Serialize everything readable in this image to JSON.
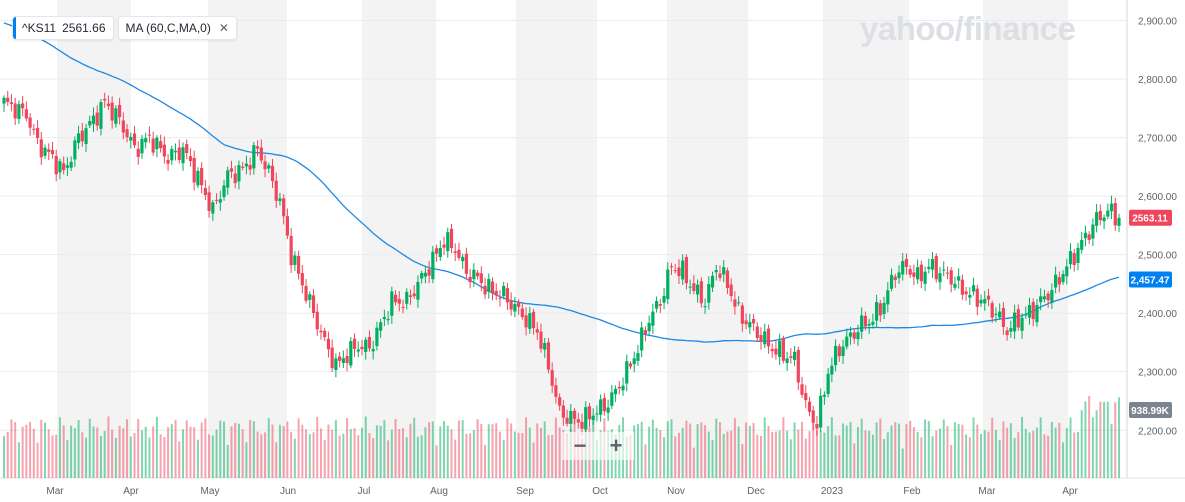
{
  "legend": {
    "symbol": "^KS11",
    "last_value": "2561.66",
    "indicator": "MA (60,C,MA,0)",
    "close_glyph": "✕"
  },
  "watermark": "yahoo/finance",
  "zoom": {
    "minus": "−",
    "plus": "+"
  },
  "colors": {
    "up": "#00b061",
    "down": "#f0465c",
    "ma_line": "#1e88e5",
    "price_tag": "#f0465c",
    "ma_tag": "#0081f2",
    "volume_tag": "#7b8590"
  },
  "chart_data": {
    "type": "candlestick",
    "title": "",
    "price_axis": {
      "ticks": [
        "2,900.00",
        "2,800.00",
        "2,700.00",
        "2,600.00",
        "2,500.00",
        "2,400.00",
        "2,300.00",
        "2,200.00"
      ],
      "range": [
        2180,
        2935
      ]
    },
    "x_labels": [
      "Mar",
      "Apr",
      "May",
      "Jun",
      "Jul",
      "Aug",
      "Sep",
      "Oct",
      "Nov",
      "Dec",
      "2023",
      "Feb",
      "Mar",
      "Apr"
    ],
    "last_price_tag": "2563.11",
    "ma_tag": "2,457.47",
    "volume_tag": "938.99K",
    "close_anchors": [
      [
        0,
        2760
      ],
      [
        6,
        2740
      ],
      [
        9,
        2690
      ],
      [
        13,
        2665
      ],
      [
        16,
        2640
      ],
      [
        20,
        2700
      ],
      [
        24,
        2730
      ],
      [
        27,
        2760
      ],
      [
        31,
        2730
      ],
      [
        35,
        2680
      ],
      [
        39,
        2700
      ],
      [
        44,
        2665
      ],
      [
        48,
        2680
      ],
      [
        52,
        2630
      ],
      [
        56,
        2575
      ],
      [
        60,
        2635
      ],
      [
        64,
        2645
      ],
      [
        68,
        2680
      ],
      [
        71,
        2640
      ],
      [
        74,
        2590
      ],
      [
        77,
        2500
      ],
      [
        80,
        2450
      ],
      [
        83,
        2400
      ],
      [
        86,
        2350
      ],
      [
        89,
        2310
      ],
      [
        92,
        2330
      ],
      [
        95,
        2345
      ],
      [
        98,
        2340
      ],
      [
        101,
        2380
      ],
      [
        104,
        2420
      ],
      [
        108,
        2420
      ],
      [
        112,
        2460
      ],
      [
        115,
        2490
      ],
      [
        118,
        2525
      ],
      [
        121,
        2510
      ],
      [
        124,
        2470
      ],
      [
        127,
        2460
      ],
      [
        130,
        2440
      ],
      [
        134,
        2430
      ],
      [
        137,
        2410
      ],
      [
        140,
        2390
      ],
      [
        143,
        2370
      ],
      [
        146,
        2310
      ],
      [
        149,
        2230
      ],
      [
        152,
        2220
      ],
      [
        155,
        2215
      ],
      [
        158,
        2230
      ],
      [
        161,
        2240
      ],
      [
        164,
        2265
      ],
      [
        167,
        2300
      ],
      [
        170,
        2340
      ],
      [
        173,
        2390
      ],
      [
        176,
        2420
      ],
      [
        179,
        2480
      ],
      [
        182,
        2470
      ],
      [
        185,
        2440
      ],
      [
        188,
        2420
      ],
      [
        191,
        2480
      ],
      [
        194,
        2450
      ],
      [
        197,
        2400
      ],
      [
        200,
        2380
      ],
      [
        203,
        2360
      ],
      [
        206,
        2340
      ],
      [
        209,
        2330
      ],
      [
        212,
        2320
      ],
      [
        215,
        2240
      ],
      [
        218,
        2210
      ],
      [
        221,
        2300
      ],
      [
        224,
        2340
      ],
      [
        227,
        2360
      ],
      [
        230,
        2380
      ],
      [
        233,
        2390
      ],
      [
        236,
        2420
      ],
      [
        239,
        2470
      ],
      [
        242,
        2480
      ],
      [
        245,
        2460
      ],
      [
        248,
        2480
      ],
      [
        251,
        2470
      ],
      [
        254,
        2460
      ],
      [
        257,
        2440
      ],
      [
        260,
        2430
      ],
      [
        263,
        2420
      ],
      [
        266,
        2400
      ],
      [
        269,
        2370
      ],
      [
        272,
        2390
      ],
      [
        275,
        2400
      ],
      [
        278,
        2420
      ],
      [
        281,
        2440
      ],
      [
        284,
        2470
      ],
      [
        287,
        2500
      ],
      [
        290,
        2530
      ],
      [
        293,
        2560
      ],
      [
        296,
        2575
      ],
      [
        299,
        2562
      ]
    ],
    "ma_period": 60,
    "volume_range": [
      0,
      1000
    ]
  }
}
